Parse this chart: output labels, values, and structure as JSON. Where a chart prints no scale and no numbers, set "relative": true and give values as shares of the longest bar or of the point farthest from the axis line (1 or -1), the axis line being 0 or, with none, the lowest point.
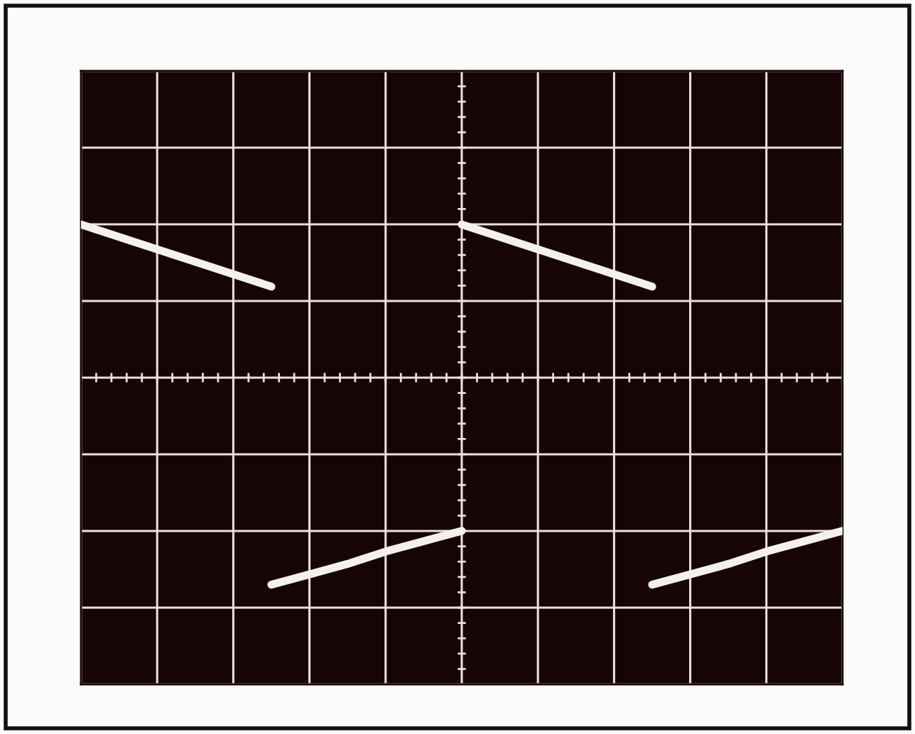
{
  "chart_data": {
    "type": "line",
    "relative": true,
    "grid": true,
    "line_style": "solid",
    "marker": "none",
    "categories": [
      null,
      null,
      null,
      null,
      null,
      null,
      null,
      null,
      null,
      null,
      null,
      null,
      null,
      null,
      null,
      null,
      null,
      null,
      null,
      null,
      null
    ],
    "series": [
      {
        "color": "#f4f1ec",
        "values": [
          0.74,
          0.68,
          0.62,
          0.56,
          0.5,
          0.44,
          null,
          null,
          null,
          null,
          null,
          null,
          null,
          null,
          null,
          null,
          null,
          null,
          null,
          null,
          null
        ]
      },
      {
        "color": "#f4f1ec",
        "values": [
          null,
          null,
          null,
          null,
          null,
          null,
          null,
          null,
          null,
          null,
          0.74,
          0.68,
          0.62,
          0.56,
          0.5,
          0.44,
          null,
          null,
          null,
          null,
          null
        ]
      },
      {
        "color": "#f4f1ec",
        "values": [
          null,
          null,
          null,
          null,
          null,
          -1,
          -0.95,
          -0.9,
          -0.84,
          -0.79,
          -0.74,
          null,
          null,
          null,
          null,
          null,
          null,
          null,
          null,
          null,
          null
        ]
      },
      {
        "color": "#f4f1ec",
        "values": [
          null,
          null,
          null,
          null,
          null,
          null,
          null,
          null,
          null,
          null,
          null,
          null,
          null,
          null,
          null,
          -1,
          -0.95,
          -0.9,
          -0.84,
          -0.79,
          -0.74
        ]
      }
    ]
  }
}
